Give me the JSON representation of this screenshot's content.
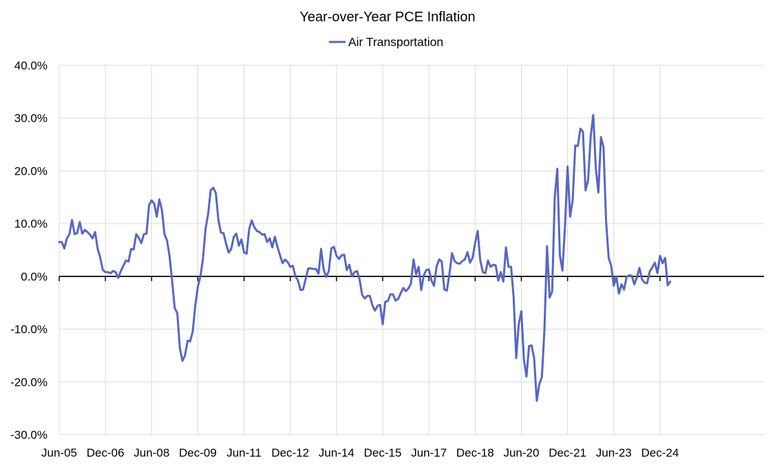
{
  "chart_data": {
    "type": "line",
    "title": "Year-over-Year PCE Inflation",
    "legend": {
      "position": "top-center",
      "entries": [
        "Air Transportation"
      ]
    },
    "xlabel": "",
    "ylabel": "",
    "ylim": [
      -30,
      40
    ],
    "y_ticks": [
      40,
      30,
      20,
      10,
      0,
      -10,
      -20,
      -30
    ],
    "y_tick_labels": [
      "40.0%",
      "30.0%",
      "20.0%",
      "10.0%",
      "0.0%",
      "-10.0%",
      "-20.0%",
      "-30.0%"
    ],
    "x_tick_labels": [
      "Jun-05",
      "Dec-06",
      "Jun-08",
      "Dec-09",
      "Jun-11",
      "Dec-12",
      "Jun-14",
      "Dec-15",
      "Jun-17",
      "Dec-18",
      "Jun-20",
      "Dec-21",
      "Jun-23",
      "Dec-24"
    ],
    "x_tick_positions": [
      0,
      18,
      36,
      54,
      72,
      90,
      108,
      126,
      144,
      162,
      180,
      198,
      216,
      234
    ],
    "x_start_label": "Jun-05",
    "grid": true,
    "series": [
      {
        "name": "Air Transportation",
        "color": "#5566C3",
        "start": "2005-06",
        "frequency": "monthly",
        "values": [
          6.5,
          6.5,
          5.3,
          7.2,
          8.0,
          10.7,
          8.0,
          8.2,
          10.3,
          8.1,
          8.8,
          8.4,
          7.9,
          7.2,
          8.4,
          5.2,
          3.5,
          1.2,
          0.8,
          0.8,
          0.6,
          1.0,
          0.8,
          -0.3,
          1.0,
          2.0,
          3.0,
          2.8,
          5.2,
          5.1,
          8.0,
          7.3,
          6.3,
          8.0,
          8.1,
          13.5,
          14.4,
          13.8,
          11.3,
          14.6,
          12.6,
          8.0,
          6.8,
          3.8,
          -1.0,
          -6.0,
          -7.0,
          -13.6,
          -16.0,
          -15.0,
          -12.2,
          -12.3,
          -10.5,
          -5.5,
          -2.0,
          0.0,
          3.3,
          9.0,
          11.8,
          16.3,
          16.8,
          15.8,
          10.7,
          8.3,
          8.2,
          6.2,
          4.5,
          5.2,
          7.5,
          8.1,
          5.8,
          7.0,
          4.5,
          4.3,
          9.0,
          10.6,
          9.3,
          8.6,
          8.4,
          7.9,
          8.0,
          6.5,
          7.2,
          5.5,
          7.5,
          5.6,
          4.0,
          2.5,
          3.2,
          2.7,
          1.8,
          2.0,
          0.0,
          -0.8,
          -2.6,
          -2.5,
          -0.5,
          1.5,
          1.5,
          1.4,
          1.4,
          0.5,
          5.2,
          1.3,
          -0.1,
          1.0,
          5.3,
          5.6,
          3.9,
          3.3,
          4.0,
          4.1,
          1.2,
          2.2,
          0.0,
          0.8,
          1.0,
          -0.6,
          -3.5,
          -4.2,
          -3.7,
          -3.7,
          -5.5,
          -6.5,
          -5.6,
          -5.4,
          -9.1,
          -4.8,
          -4.7,
          -3.4,
          -3.4,
          -4.6,
          -4.3,
          -3.2,
          -2.2,
          -2.8,
          -2.3,
          -1.4,
          3.2,
          0.4,
          1.8,
          -2.6,
          0.2,
          1.2,
          1.3,
          -0.8,
          -1.8,
          1.9,
          3.2,
          2.8,
          -2.5,
          -2.7,
          0.5,
          4.4,
          2.9,
          2.5,
          2.4,
          2.9,
          3.2,
          4.6,
          2.6,
          3.5,
          6.3,
          8.6,
          3.0,
          0.8,
          0.6,
          3.0,
          1.8,
          2.2,
          2.1,
          -0.8,
          0.8,
          -1.0,
          5.5,
          1.8,
          1.8,
          -4.0,
          -15.5,
          -9.0,
          -6.6,
          -15.8,
          -19.0,
          -13.2,
          -13.1,
          -15.6,
          -23.6,
          -20.4,
          -19.1,
          -10.0,
          5.7,
          -4.0,
          -2.9,
          15.0,
          20.4,
          4.0,
          1.1,
          9.5,
          20.8,
          11.3,
          14.5,
          24.8,
          24.7,
          28.0,
          27.4,
          16.3,
          18.2,
          26.5,
          30.6,
          20.5,
          15.9,
          26.4,
          24.5,
          10.5,
          3.5,
          2.0,
          -1.8,
          0.0,
          -3.3,
          -1.5,
          -2.5,
          -0.1,
          0.2,
          0.1,
          -1.5,
          -0.2,
          1.6,
          -0.6,
          -1.2,
          -1.3,
          0.9,
          1.7,
          2.6,
          0.6,
          3.9,
          2.5,
          3.5,
          -1.7,
          -1.0
        ]
      }
    ]
  }
}
